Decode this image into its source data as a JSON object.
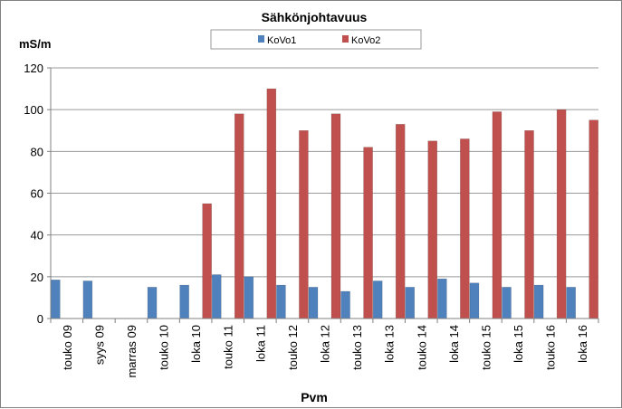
{
  "chart_data": {
    "type": "bar",
    "title": "Sähkönjohtavuus",
    "ylabel": "mS/m",
    "xlabel": "Pvm",
    "ylim": [
      0,
      120
    ],
    "yticks": [
      0,
      20,
      40,
      60,
      80,
      100,
      120
    ],
    "grid": true,
    "legend_position": "top",
    "categories": [
      "touko 09",
      "syys 09",
      "marras 09",
      "touko 10",
      "loka 10",
      "touko 11",
      "loka 11",
      "touko 12",
      "loka 12",
      "touko 13",
      "loka 13",
      "touko 14",
      "loka 14",
      "touko 15",
      "loka 15",
      "touko 16",
      "loka 16"
    ],
    "series": [
      {
        "name": "KoVo1",
        "color": "#4F81BD",
        "values": [
          18.5,
          18,
          null,
          15,
          16,
          21,
          20,
          16,
          15,
          13,
          18,
          15,
          19,
          17,
          15,
          16,
          15
        ]
      },
      {
        "name": "KoVo2",
        "color": "#C0504D",
        "values": [
          null,
          null,
          null,
          null,
          55,
          98,
          110,
          90,
          98,
          82,
          93,
          85,
          86,
          99,
          90,
          100,
          95
        ]
      }
    ]
  }
}
